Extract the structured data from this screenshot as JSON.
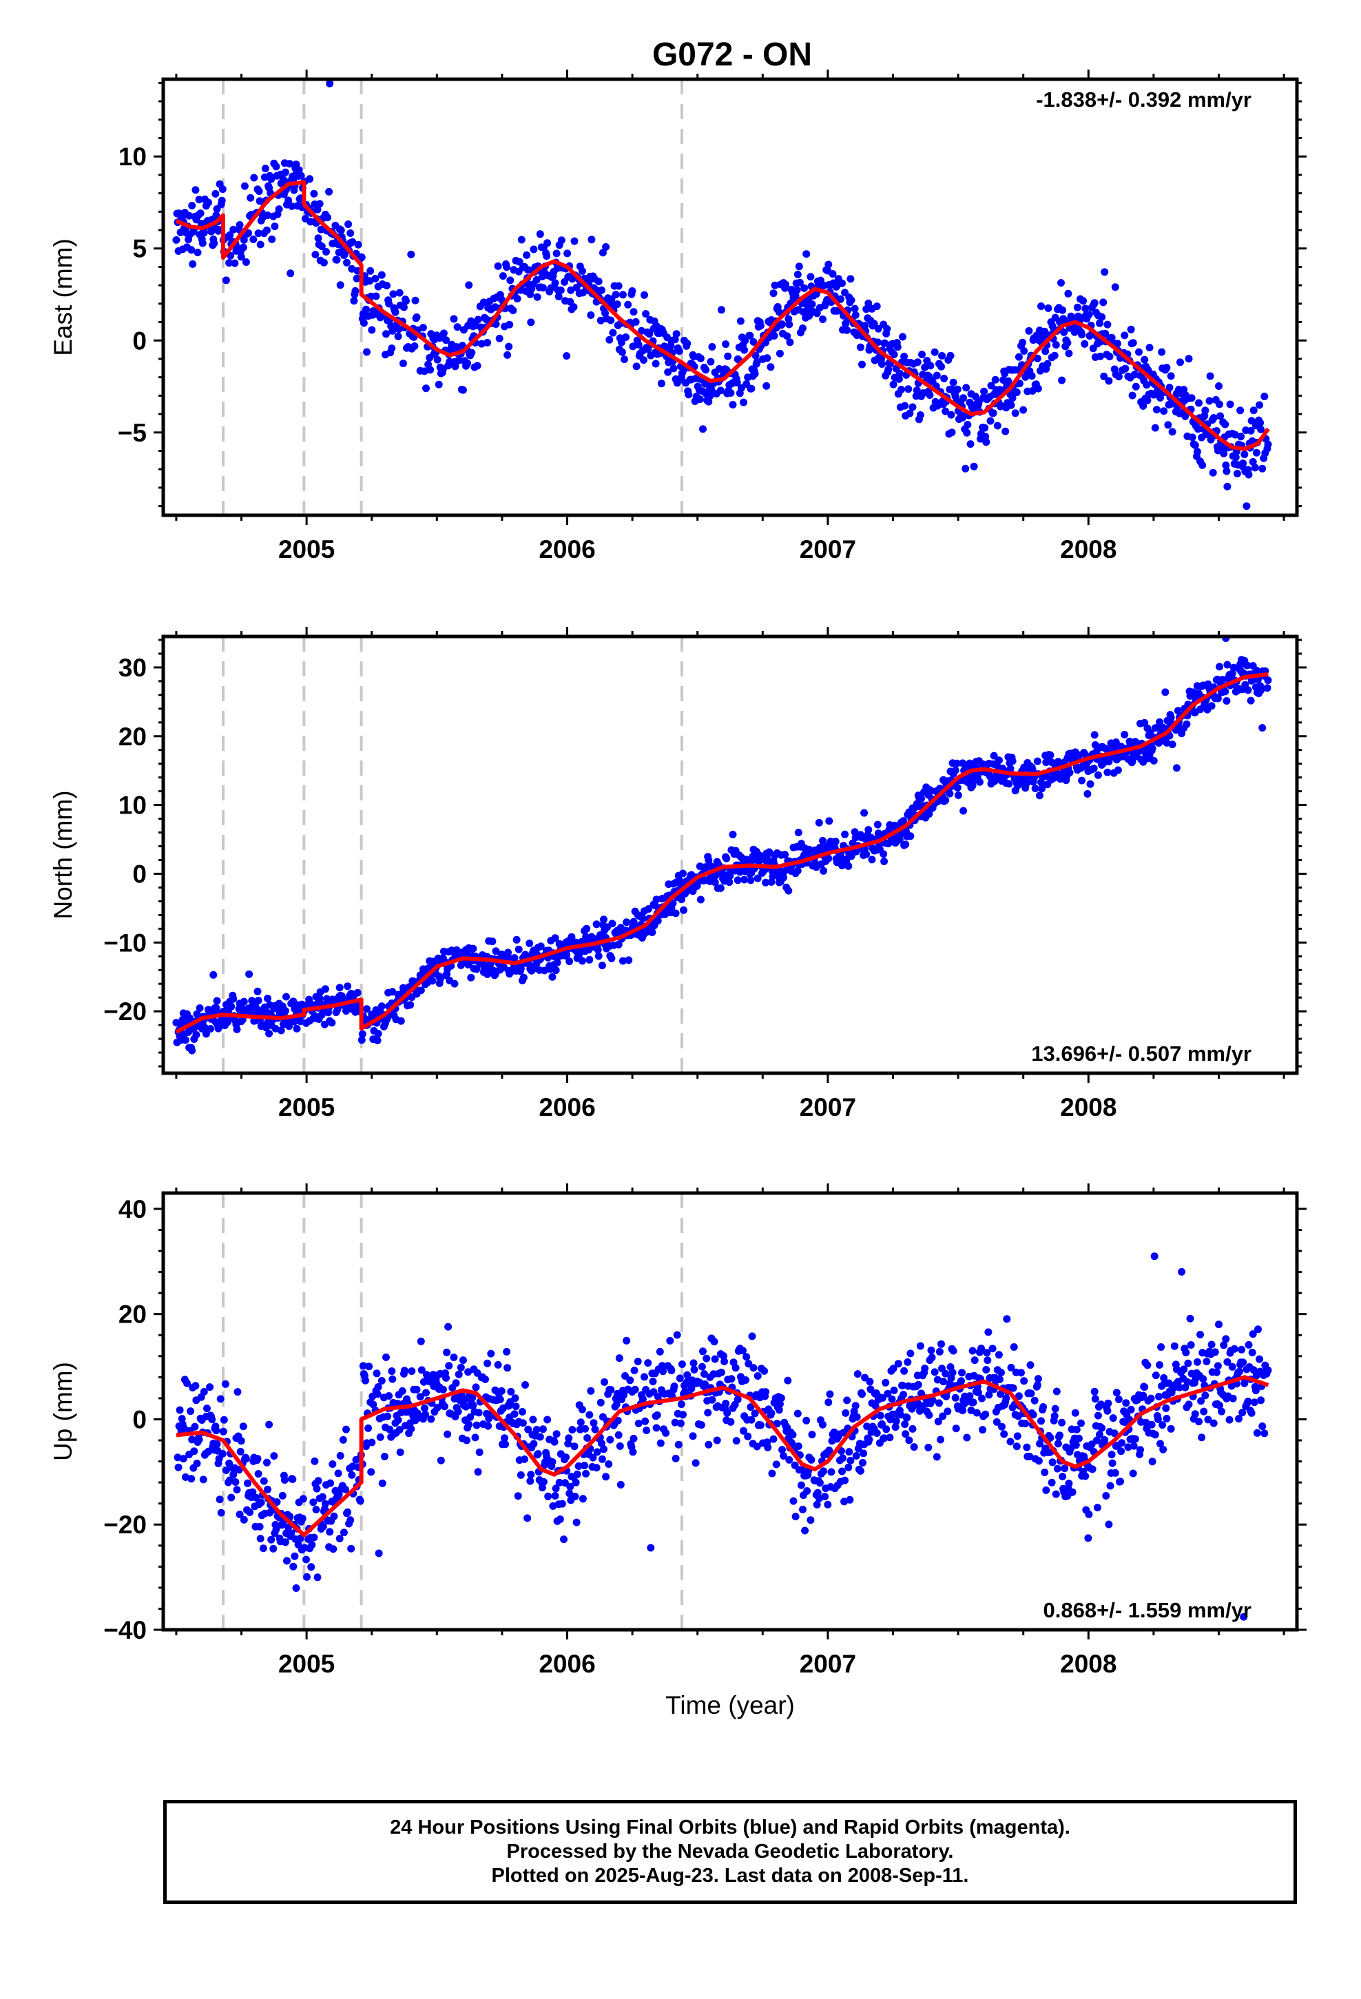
{
  "title": "G072 - ON",
  "xlabel": "Time (year)",
  "footer": {
    "line1": "24 Hour Positions Using Final Orbits (blue) and Rapid Orbits (magenta).",
    "line2": "Processed by the Nevada Geodetic Laboratory.",
    "line3": "Plotted on 2025-Aug-23. Last data on 2008-Sep-11."
  },
  "colors": {
    "points": "#0000ff",
    "model": "#ff0000",
    "equipment_change": "#c8c8c8",
    "frame": "#000000"
  },
  "chart_data": [
    {
      "type": "scatter",
      "ylabel": "East (mm)",
      "rate_label": "-1.838+/- 0.392 mm/yr",
      "xlim": [
        2004.45,
        2008.8
      ],
      "ylim": [
        -9.5,
        14.2
      ],
      "xticks": [
        2005,
        2006,
        2007,
        2008
      ],
      "yticks": [
        -5,
        0,
        5,
        10
      ],
      "grid": false,
      "equipment_changes": [
        2004.68,
        2004.99,
        2005.21,
        2006.44
      ],
      "model": {
        "x": [
          2004.5,
          2004.55,
          2004.6,
          2004.65,
          2004.68,
          2004.68,
          2004.75,
          2004.85,
          2004.93,
          2004.99,
          2004.99,
          2005.05,
          2005.12,
          2005.21,
          2005.21,
          2005.3,
          2005.4,
          2005.5,
          2005.55,
          2005.6,
          2005.7,
          2005.8,
          2005.9,
          2005.95,
          2006.0,
          2006.1,
          2006.2,
          2006.3,
          2006.44,
          2006.5,
          2006.55,
          2006.6,
          2006.7,
          2006.8,
          2006.9,
          2006.95,
          2007.0,
          2007.1,
          2007.2,
          2007.3,
          2007.4,
          2007.5,
          2007.55,
          2007.6,
          2007.7,
          2007.8,
          2007.9,
          2007.95,
          2008.0,
          2008.1,
          2008.2,
          2008.3,
          2008.4,
          2008.5,
          2008.55,
          2008.6,
          2008.65,
          2008.69
        ],
        "y": [
          6.5,
          6.2,
          6.1,
          6.4,
          6.8,
          4.5,
          5.8,
          7.6,
          8.5,
          8.6,
          7.4,
          6.5,
          5.6,
          4.1,
          2.5,
          1.5,
          0.6,
          -0.5,
          -0.8,
          -0.6,
          0.8,
          2.8,
          4.0,
          4.3,
          4.0,
          2.6,
          1.2,
          0.0,
          -1.2,
          -1.8,
          -2.2,
          -2.1,
          -0.8,
          1.0,
          2.3,
          2.8,
          2.6,
          1.0,
          -0.6,
          -1.6,
          -2.6,
          -3.6,
          -4.0,
          -3.9,
          -2.6,
          -0.6,
          0.8,
          1.0,
          0.7,
          -0.4,
          -1.6,
          -2.8,
          -4.1,
          -5.3,
          -5.8,
          -5.9,
          -5.6,
          -4.8
        ]
      },
      "noise": 1.0
    },
    {
      "type": "scatter",
      "ylabel": "North (mm)",
      "rate_label": "13.696+/- 0.507 mm/yr",
      "xlim": [
        2004.45,
        2008.8
      ],
      "ylim": [
        -29,
        34.5
      ],
      "xticks": [
        2005,
        2006,
        2007,
        2008
      ],
      "yticks": [
        -20,
        -10,
        0,
        10,
        20,
        30
      ],
      "grid": false,
      "equipment_changes": [
        2004.68,
        2004.99,
        2005.21,
        2006.44
      ],
      "model": {
        "x": [
          2004.5,
          2004.6,
          2004.68,
          2004.8,
          2004.9,
          2004.99,
          2004.99,
          2005.1,
          2005.21,
          2005.21,
          2005.3,
          2005.4,
          2005.5,
          2005.6,
          2005.7,
          2005.8,
          2005.9,
          2006.0,
          2006.1,
          2006.2,
          2006.3,
          2006.4,
          2006.5,
          2006.6,
          2006.7,
          2006.8,
          2006.9,
          2007.0,
          2007.1,
          2007.2,
          2007.3,
          2007.4,
          2007.5,
          2007.55,
          2007.6,
          2007.7,
          2007.8,
          2007.9,
          2008.0,
          2008.1,
          2008.2,
          2008.3,
          2008.4,
          2008.5,
          2008.6,
          2008.69
        ],
        "y": [
          -23.0,
          -21.0,
          -20.5,
          -20.8,
          -21.0,
          -20.5,
          -19.8,
          -19.2,
          -18.3,
          -22.5,
          -20.5,
          -17.0,
          -13.5,
          -12.3,
          -12.5,
          -13.0,
          -12.0,
          -10.8,
          -10.2,
          -9.3,
          -7.5,
          -3.5,
          -0.5,
          1.0,
          1.2,
          1.0,
          1.8,
          3.0,
          3.8,
          4.8,
          7.0,
          10.5,
          14.0,
          15.0,
          15.2,
          14.6,
          14.5,
          15.5,
          16.8,
          17.6,
          18.5,
          20.5,
          24.5,
          27.0,
          28.6,
          29.0
        ]
      },
      "noise": 1.3
    },
    {
      "type": "scatter",
      "ylabel": "Up (mm)",
      "rate_label": "0.868+/- 1.559 mm/yr",
      "xlim": [
        2004.45,
        2008.8
      ],
      "ylim": [
        -40,
        43
      ],
      "xticks": [
        2005,
        2006,
        2007,
        2008
      ],
      "yticks": [
        -40,
        -20,
        0,
        20,
        40
      ],
      "grid": false,
      "equipment_changes": [
        2004.68,
        2004.99,
        2005.21,
        2006.44
      ],
      "model": {
        "x": [
          2004.5,
          2004.6,
          2004.68,
          2004.8,
          2004.9,
          2004.99,
          2005.1,
          2005.21,
          2005.21,
          2005.3,
          2005.4,
          2005.5,
          2005.6,
          2005.65,
          2005.8,
          2005.9,
          2005.95,
          2006.0,
          2006.1,
          2006.2,
          2006.3,
          2006.44,
          2006.55,
          2006.6,
          2006.7,
          2006.8,
          2006.9,
          2006.95,
          2007.0,
          2007.1,
          2007.2,
          2007.3,
          2007.4,
          2007.5,
          2007.6,
          2007.7,
          2007.8,
          2007.9,
          2007.95,
          2008.0,
          2008.1,
          2008.2,
          2008.3,
          2008.4,
          2008.5,
          2008.6,
          2008.69
        ],
        "y": [
          -3.0,
          -2.5,
          -4.0,
          -12.0,
          -18.0,
          -22.0,
          -17.0,
          -12.0,
          0.0,
          2.0,
          2.5,
          4.0,
          5.5,
          5.0,
          -3.0,
          -9.5,
          -10.5,
          -9.0,
          -4.0,
          1.5,
          3.0,
          4.0,
          5.5,
          6.0,
          4.0,
          -2.0,
          -8.5,
          -9.5,
          -8.0,
          -1.5,
          2.0,
          3.5,
          4.5,
          6.0,
          7.2,
          5.0,
          -1.5,
          -8.0,
          -9.0,
          -8.0,
          -4.0,
          1.0,
          3.5,
          5.0,
          6.5,
          8.0,
          6.5
        ]
      },
      "noise": 5.0
    }
  ]
}
